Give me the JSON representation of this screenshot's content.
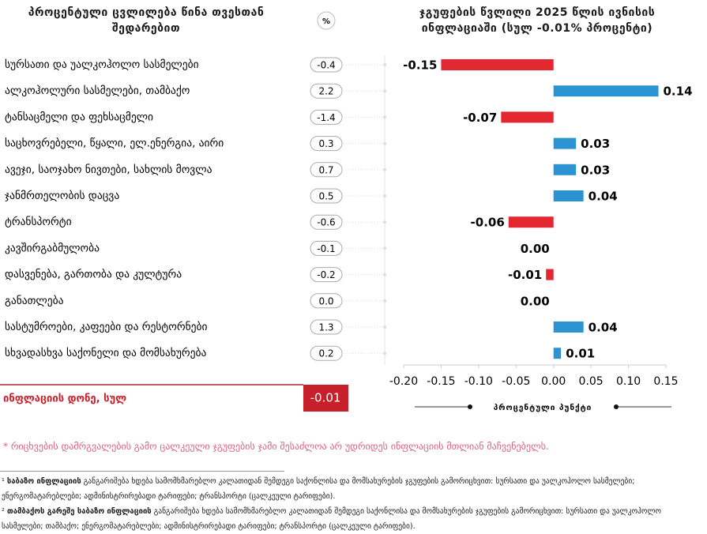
{
  "left_panel": {
    "title": "პროცენტული ცვლილება წინა თვესთან შედარებით",
    "unit": "%",
    "changes": [
      "-0.4",
      "2.2",
      "-1.4",
      "0.3",
      "0.7",
      "0.5",
      "-0.6",
      "-0.1",
      "-0.2",
      "0.0",
      "1.3",
      "0.2"
    ]
  },
  "total": {
    "label": "ინფლაციის დონე, სულ",
    "value": "-0.01"
  },
  "note": "* რიცხვების დამრგვალების გამო ცალკეული ჯგუფების ჯამი შესაძლოა არ უდრიდეს ინფლაციის მთლიან მაჩვენებელს.",
  "footnotes": [
    {
      "marker": "¹",
      "term": "საბაზო ინფლაციის",
      "text": "განგარიშება ხდება სამომხმარებლო კალათიდან შემდეგი საქონლისა და მომსახურების ჯგუფების გამორიცხვით: სურსათი და უალკოჰოლო სასმელები; ენერგომატარებლები; ადმინისტრირებადი ტარიფები; ტრანსპორტი (ცალკეული ტარიფები)."
    },
    {
      "marker": "²",
      "term": "თამბაქოს გარეშე საბაზო ინფლაციის",
      "text": "განგარიშება ხდება სამომხმარებლო კალათიდან შემდეგი საქონლისა და მომსახურების ჯგუფების გამორიცხვით: სურსათი და უალკოჰოლო სასმელები; თამბაქო; ენერგომატარებლები; ადმინისტრირებადი ტარიფები; ტრანსპორტი (ცალკეული ტარიფები)."
    }
  ],
  "chart_data": {
    "type": "bar",
    "orientation": "horizontal",
    "title": "ჯგუფების წვლილი 2025 წლის ივნისის ინფლაციაში (სულ -0.01% პროცენტი)",
    "xlabel": "პროცენტული პუნქტი",
    "categories": [
      "სურსათი და უალკოჰოლო სასმელები",
      "ალკოჰოლური სასმელები, თამბაქო",
      "ტანსაცმელი და ფეხსაცმელი",
      "საცხოვრებელი, წყალი, ელ.ენერგია, აირი",
      "ავეჯი, საოჯახო ნივთები, სახლის მოვლა",
      "ჯანმრთელობის დაცვა",
      "ტრანსპორტი",
      "კავშირგაბმულობა",
      "დასვენება, გართობა და კულტურა",
      "განათლება",
      "სასტუმროები, კაფეები და რესტორნები",
      "სხვადასხვა საქონელი და მომსახურება"
    ],
    "values": [
      -0.15,
      0.14,
      -0.07,
      0.03,
      0.03,
      0.04,
      -0.06,
      0,
      -0.01,
      0,
      0.04,
      0.01
    ],
    "value_labels": [
      "-0.15",
      "0.14",
      "-0.07",
      "0.03",
      "0.03",
      "0.04",
      "-0.06",
      "0.00",
      "-0.01",
      "0.00",
      "0.04",
      "0.01"
    ],
    "xlim": [
      -0.2,
      0.15
    ],
    "xticks": [
      {
        "value": -0.2,
        "label": "-0.20"
      },
      -0.15,
      {
        "value": -0.1,
        "label": "-0.10"
      },
      -0.05,
      {
        "value": 0,
        "label": "0.00"
      },
      0.05,
      {
        "value": 0.1,
        "label": "0.10"
      },
      0.15
    ],
    "negative_color": "#e3262f",
    "positive_color": "#2b93d1",
    "grid": false
  }
}
